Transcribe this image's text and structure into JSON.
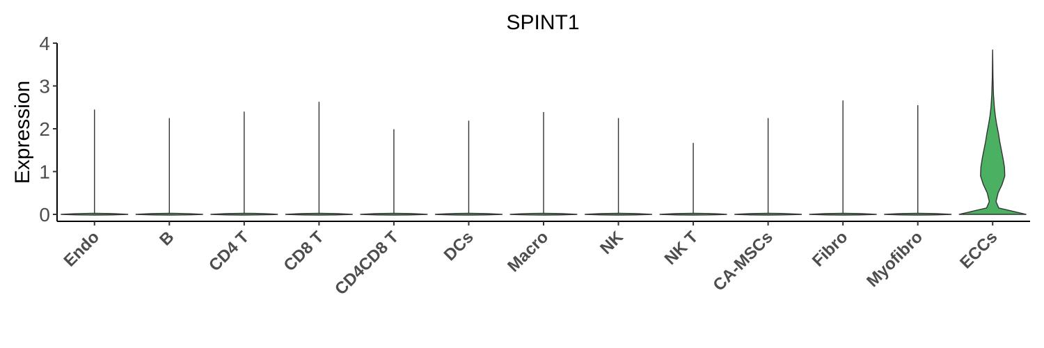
{
  "chart_data": {
    "type": "violin",
    "title": "SPINT1",
    "xlabel": "",
    "ylabel": "Expression",
    "ylim": [
      0,
      4
    ],
    "yticks": [
      0,
      1,
      2,
      3,
      4
    ],
    "grid": false,
    "highlight_color": "#4bb061",
    "categories": [
      "Endo",
      "B",
      "CD4 T",
      "CD8 T",
      "CD4CD8 T",
      "DCs",
      "Macro",
      "NK",
      "NK T",
      "CA-MSCs",
      "Fibro",
      "Myofibro",
      "ECCs"
    ],
    "max_values": [
      2.45,
      2.25,
      2.4,
      2.63,
      1.99,
      2.19,
      2.39,
      2.25,
      1.67,
      2.25,
      2.66,
      2.55,
      3.85
    ],
    "density_profiles": [
      {
        "category": "ECCs",
        "y": [
          0,
          0.05,
          0.15,
          0.3,
          0.5,
          0.7,
          0.9,
          1.1,
          1.3,
          1.5,
          1.7,
          1.9,
          2.1,
          2.3,
          2.5,
          2.8,
          3.2,
          3.85
        ],
        "relative_width": [
          1.0,
          0.72,
          0.18,
          0.1,
          0.16,
          0.28,
          0.36,
          0.35,
          0.31,
          0.26,
          0.21,
          0.17,
          0.12,
          0.08,
          0.05,
          0.025,
          0.01,
          0.0
        ]
      }
    ]
  }
}
